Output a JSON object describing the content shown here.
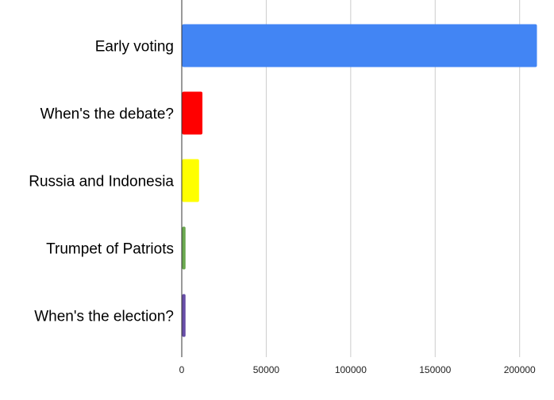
{
  "chart_data": {
    "type": "bar",
    "orientation": "horizontal",
    "categories": [
      "Early voting",
      "When's the debate?",
      "Russia and Indonesia",
      "Trumpet of Patriots",
      "When's the election?"
    ],
    "values": [
      210000,
      12000,
      10000,
      2000,
      2000
    ],
    "colors": [
      "#4285f4",
      "#ff0000",
      "#ffff00",
      "#6aa84f",
      "#674ea7"
    ],
    "xlim": [
      0,
      210000
    ],
    "xticks": [
      0,
      50000,
      100000,
      150000,
      200000
    ],
    "grid": true,
    "legend": "none"
  }
}
